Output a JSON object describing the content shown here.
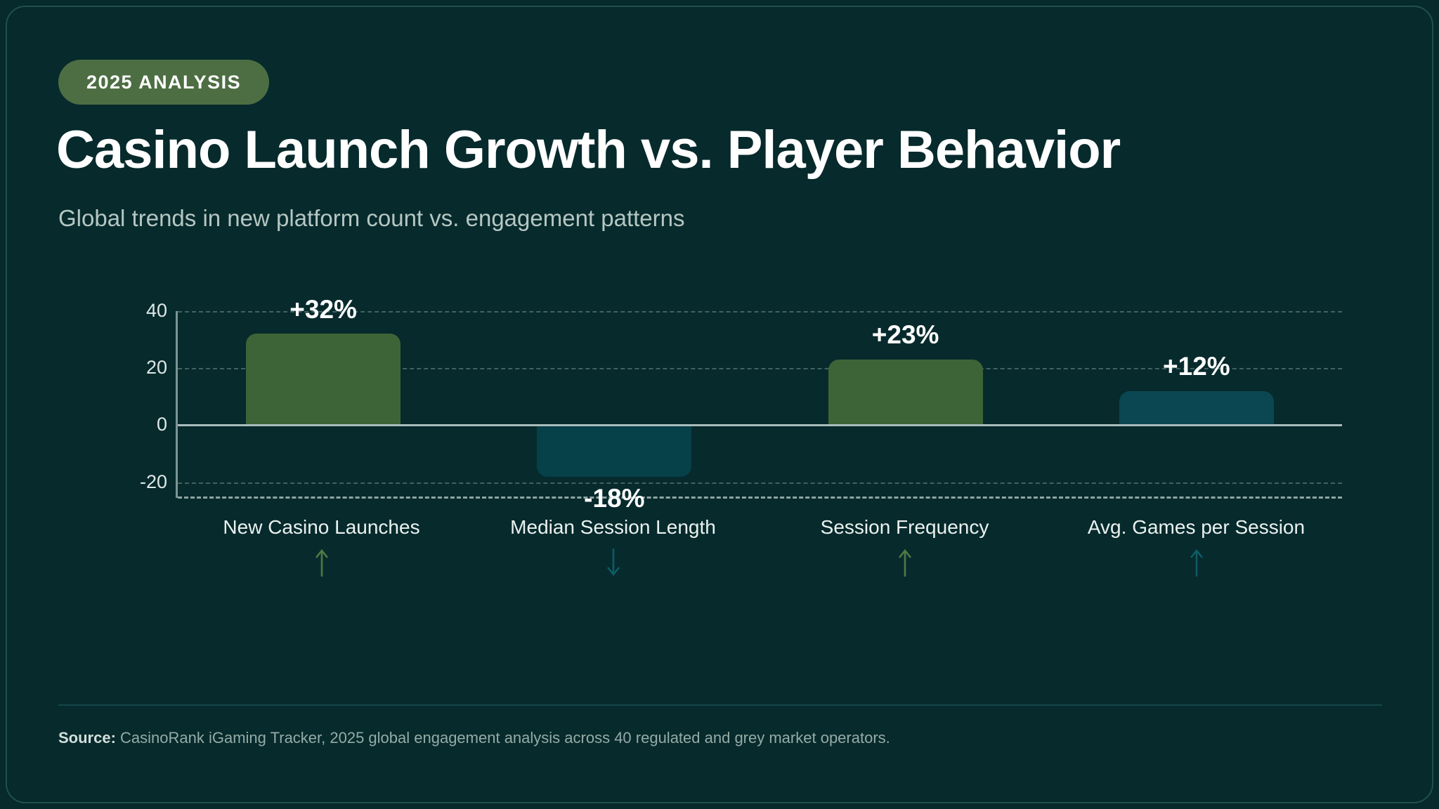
{
  "badge": {
    "label": "2025 ANALYSIS"
  },
  "header": {
    "title": "Casino Launch Growth vs. Player Behavior",
    "subtitle": "Global trends in new platform count vs. engagement patterns"
  },
  "chart_data": {
    "type": "bar",
    "title": "",
    "xlabel": "",
    "ylabel": "",
    "categories": [
      "New Casino Launches",
      "Median Session Length",
      "Session Frequency",
      "Avg. Games per Session"
    ],
    "values": [
      32,
      -18,
      23,
      12
    ],
    "data_labels": [
      "+32%",
      "-18%",
      "+23%",
      "+12%"
    ],
    "bar_colors": [
      "#3c6437",
      "#064049",
      "#3c6437",
      "#0a4752"
    ],
    "trend_arrows": [
      "up",
      "down",
      "up",
      "up"
    ],
    "arrow_colors": [
      "#4e7a45",
      "#0e5b66",
      "#4e7a45",
      "#0e5b66"
    ],
    "yticks": [
      40,
      20,
      0,
      -20
    ],
    "ylim": [
      -25.5,
      40
    ],
    "grid": "dashed-horizontal",
    "legend": "none"
  },
  "footer": {
    "source_label": "Source:",
    "source_text": " CasinoRank iGaming Tracker, 2025 global engagement analysis across 40 regulated and grey market operators."
  },
  "colors": {
    "background": "#072a2c",
    "card_border": "#1f4f51",
    "badge_bg": "#4d6e43",
    "title": "#ffffff",
    "subtitle": "#b5c7c3",
    "positive_bar": "#3c6437",
    "negative_bar": "#064049",
    "zero_line": "#a9bcbc",
    "gridline": "#9abaa9"
  }
}
